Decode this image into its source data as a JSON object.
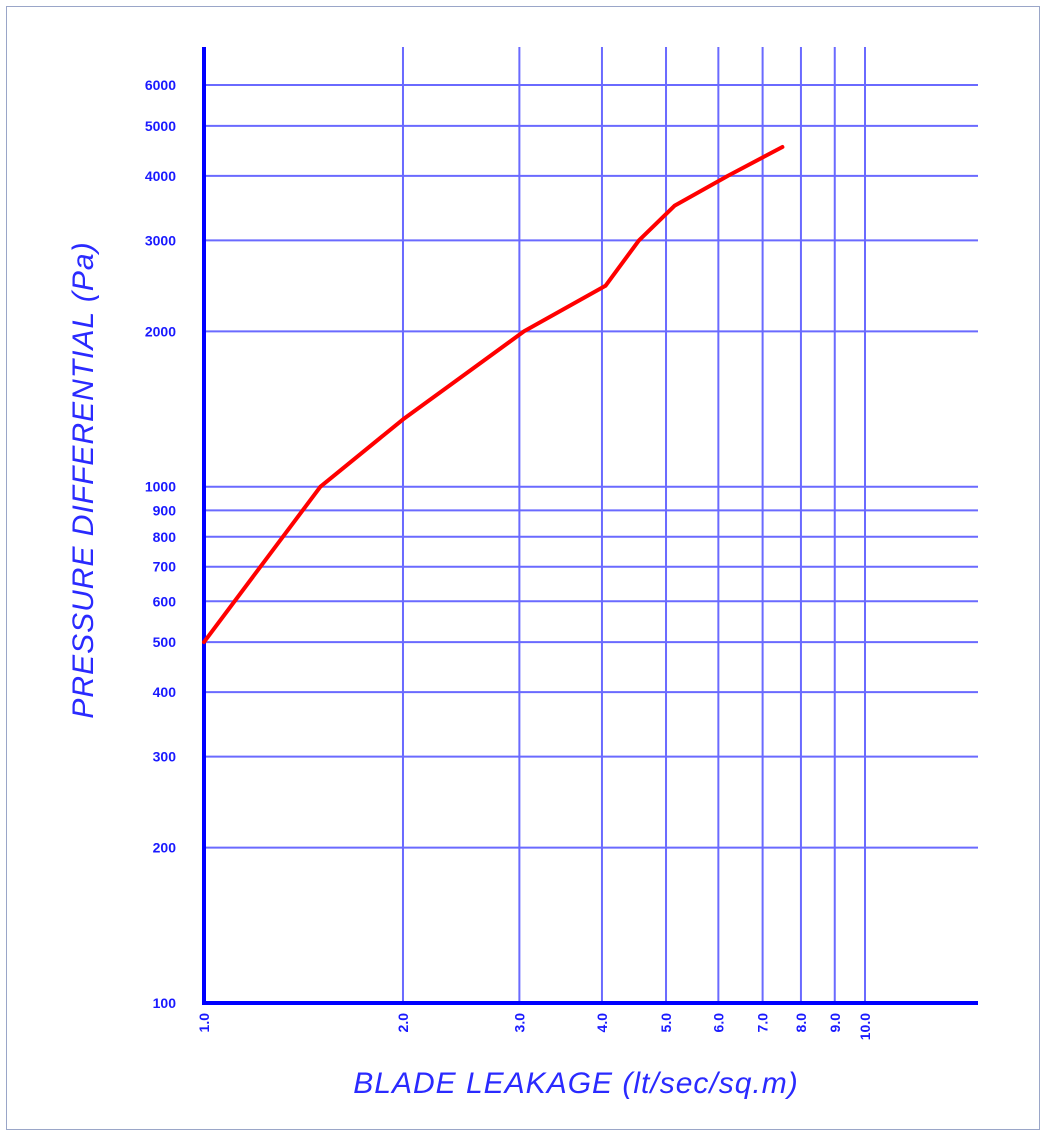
{
  "chart_data": {
    "type": "line",
    "title": "",
    "xlabel": "BLADE LEAKAGE (lt/sec/sq.m)",
    "ylabel": "PRESSURE DIFFERENTIAL (Pa)",
    "x_scale": "log",
    "y_scale": "log",
    "xlim": [
      1.0,
      10.0
    ],
    "ylim": [
      100,
      6000
    ],
    "x_ticks": [
      "1.0",
      "2.0",
      "3.0",
      "4.0",
      "5.0",
      "6.0",
      "7.0",
      "8.0",
      "9.0",
      "10.0"
    ],
    "x_tick_values": [
      1,
      2,
      3,
      4,
      5,
      6,
      7,
      8,
      9,
      10
    ],
    "y_ticks": [
      "100",
      "200",
      "300",
      "400",
      "500",
      "600",
      "700",
      "800",
      "900",
      "1000",
      "2000",
      "3000",
      "4000",
      "5000",
      "6000"
    ],
    "y_tick_values": [
      100,
      200,
      300,
      400,
      500,
      600,
      700,
      800,
      900,
      1000,
      2000,
      3000,
      4000,
      5000,
      6000
    ],
    "grid": true,
    "line_color": "#ff0000",
    "grid_color": "#6a6aff",
    "axis_color": "#0000ff",
    "series": [
      {
        "x": [
          1.0,
          1.5,
          2.0,
          3.05,
          4.05,
          4.55,
          5.15,
          6.2,
          7.5
        ],
        "y": [
          500,
          1000,
          1350,
          2000,
          2450,
          3000,
          3500,
          4000,
          4550
        ]
      }
    ]
  }
}
